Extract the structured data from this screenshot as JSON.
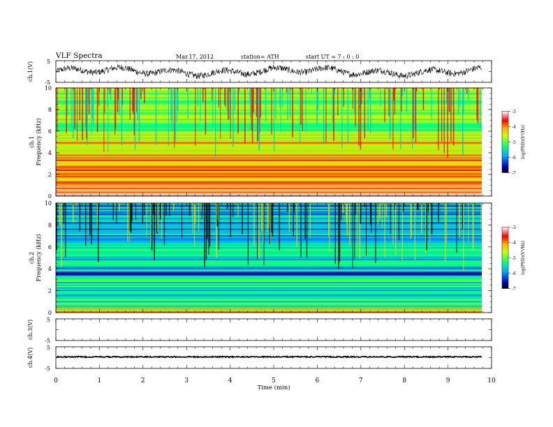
{
  "header": {
    "title": "VLF  Spectra",
    "date": "Mar.17, 2012",
    "station": "station= ATH",
    "start": "start  UT  =    7  : 0  : 0"
  },
  "chart_data": [
    {
      "type": "line",
      "panel": "ch1-waveform",
      "ylabel": "ch.1(V)",
      "ylim": [
        -5,
        5
      ],
      "yticks": [
        "5",
        "-5"
      ],
      "description_values": {
        "baseline": 0,
        "amplitude_range": [
          -3.5,
          3.5
        ]
      },
      "color": "#000000"
    },
    {
      "type": "heatmap",
      "panel": "ch1-spectrogram",
      "ylabel": "ch.1\nFrequency  (kHz)",
      "ylabel_lines": [
        "ch.1",
        "Frequency  (kHz)"
      ],
      "ylim": [
        0,
        10
      ],
      "yticks": [
        "0",
        "2",
        "4",
        "6",
        "8",
        "10"
      ],
      "xlim": [
        0,
        9.8
      ],
      "band_levels_kHz": [
        {
          "from": 0,
          "to": 0.3,
          "level": -3.2
        },
        {
          "from": 0.3,
          "to": 1.0,
          "level": -3.6
        },
        {
          "from": 1.0,
          "to": 2.0,
          "level": -4.2
        },
        {
          "from": 2.0,
          "to": 3.5,
          "level": -4.0
        },
        {
          "from": 3.5,
          "to": 5.0,
          "level": -4.3
        },
        {
          "from": 5.0,
          "to": 5.8,
          "level": -4.6
        },
        {
          "from": 5.8,
          "to": 8.0,
          "level": -5.0
        },
        {
          "from": 8.0,
          "to": 10.0,
          "level": -4.9
        }
      ],
      "colorbar": {
        "label": "log(PSD)(V²/Hz)",
        "ticks": [
          "-3",
          "-4",
          "-5",
          "-6",
          "-7"
        ],
        "range": [
          -7,
          -3
        ]
      }
    },
    {
      "type": "heatmap",
      "panel": "ch2-spectrogram",
      "ylabel_lines": [
        "ch.2",
        "Frequency  (kHz)"
      ],
      "ylim": [
        0,
        10
      ],
      "yticks": [
        "0",
        "2",
        "4",
        "6",
        "8",
        "10"
      ],
      "xlim": [
        0,
        9.8
      ],
      "band_levels_kHz": [
        {
          "from": 0,
          "to": 0.5,
          "level": -4.6
        },
        {
          "from": 0.5,
          "to": 1.5,
          "level": -5.1
        },
        {
          "from": 1.5,
          "to": 3.4,
          "level": -5.5
        },
        {
          "from": 3.4,
          "to": 3.7,
          "level": -6.4
        },
        {
          "from": 3.7,
          "to": 6.0,
          "level": -5.6
        },
        {
          "from": 6.0,
          "to": 10.0,
          "level": -5.8
        }
      ],
      "colorbar": {
        "label": "log(PSD)(V²/Hz)",
        "ticks": [
          "-3",
          "-4",
          "-5",
          "-6",
          "-7"
        ],
        "range": [
          -7,
          -3
        ]
      }
    },
    {
      "type": "line",
      "panel": "ch3-waveform",
      "ylabel": "ch.3(V)",
      "ylim": [
        -5,
        5
      ],
      "yticks": [
        "5",
        "-5"
      ]
    },
    {
      "type": "line",
      "panel": "ch4-waveform",
      "ylabel": "ch.4(V)",
      "ylim": [
        -5,
        5
      ],
      "yticks": [
        "5",
        "-5"
      ],
      "description_values": {
        "level": 0
      }
    }
  ],
  "xaxis": {
    "label": "Time  (min)",
    "ticks": [
      "0",
      "1",
      "2",
      "3",
      "4",
      "5",
      "6",
      "7",
      "8",
      "9",
      "10"
    ],
    "range": [
      0,
      10
    ]
  },
  "colors": {
    "jet": [
      "#000000",
      "#0000ff",
      "#00ffff",
      "#00ff00",
      "#ffff00",
      "#ff0000",
      "#ffffff"
    ]
  }
}
